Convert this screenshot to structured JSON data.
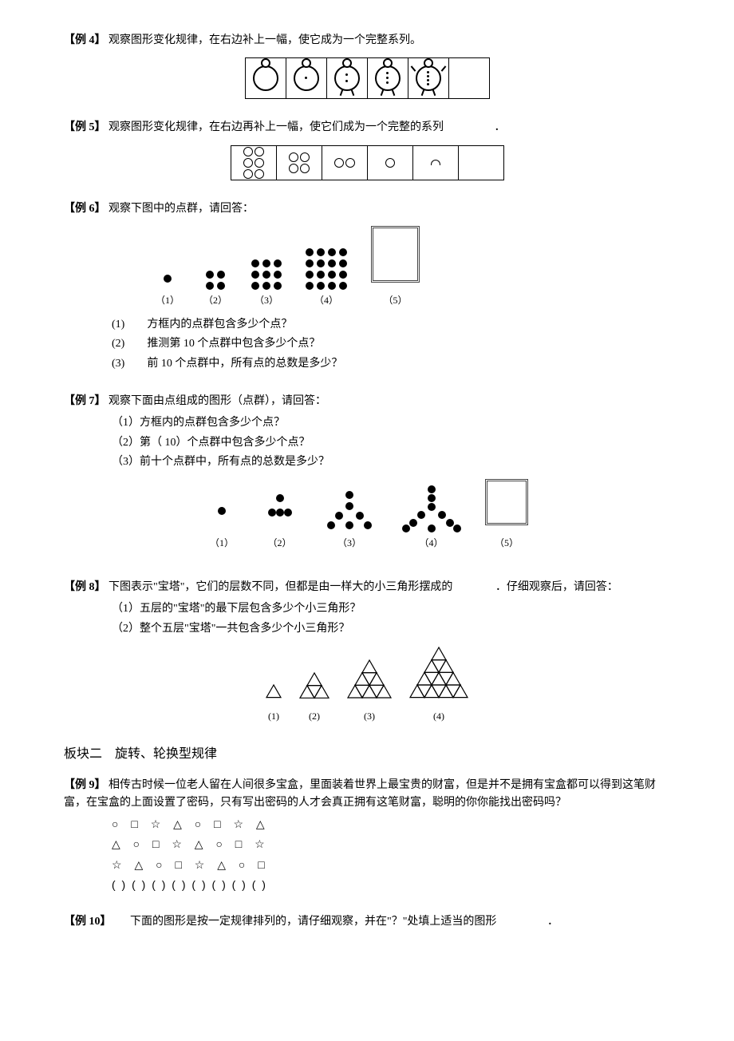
{
  "ex4": {
    "label": "【例 4】",
    "text": "观察图形变化规律，在右边补上一幅，使它成为一个完整系列。",
    "cells": 6
  },
  "ex5": {
    "label": "【例 5】",
    "text": "观察图形变化规律，在右边再补上一幅，使它们成为一个完整的系列",
    "trailing": "．",
    "cells": [
      {
        "type": "circles",
        "count": 6,
        "cols": 2,
        "rows": 3
      },
      {
        "type": "circles",
        "count": 4,
        "cols": 2,
        "rows": 2
      },
      {
        "type": "circles",
        "count": 2,
        "cols": 2,
        "rows": 1
      },
      {
        "type": "circles",
        "count": 1,
        "cols": 1,
        "rows": 1
      },
      {
        "type": "semi"
      },
      {
        "type": "empty"
      }
    ]
  },
  "ex6": {
    "label": "【例 6】",
    "text": "观察下图中的点群，请回答：",
    "groups": [
      {
        "n": 1,
        "label": "（1）"
      },
      {
        "n": 2,
        "label": "（2）"
      },
      {
        "n": 3,
        "label": "（3）"
      },
      {
        "n": 4,
        "label": "（4）"
      },
      {
        "n": 0,
        "label": "（5）",
        "box": true
      }
    ],
    "q1_num": "(1)",
    "q1": "方框内的点群包含多少个点？",
    "q2_num": "(2)",
    "q2": "推测第 10 个点群中包含多少个点？",
    "q3_num": "(3)",
    "q3": "前 10 个点群中，所有点的总数是多少？"
  },
  "ex7": {
    "label": "【例 7】",
    "text": "观察下面由点组成的图形（点群），请回答：",
    "q1": "（1）方框内的点群包含多少个点？",
    "q2": "（2）第（ 10）个点群中包含多少个点？",
    "q3": "（3）前十个点群中，所有点的总数是多少？",
    "labels": [
      "（1）",
      "（2）",
      "（3）",
      "（4）",
      "（5）"
    ]
  },
  "ex8": {
    "label": "【例 8】",
    "text": "下图表示\"宝塔\"，它们的层数不同，但都是由一样大的小三角形摆成的",
    "tail": "．仔细观察后，请回答：",
    "q1": "（1）五层的\"宝塔\"的最下层包含多少个小三角形？",
    "q2": "（2）整个五层\"宝塔\"一共包含多少个小三角形？",
    "labels": [
      "(1)",
      "(2)",
      "(3)",
      "(4)"
    ]
  },
  "section2": {
    "title": "板块二　旋转、轮换型规律"
  },
  "ex9": {
    "label": "【例  9】",
    "text": "相传古时候一位老人留在人间很多宝盒，里面装着世界上最宝贵的财富，但是并不是拥有宝盒都可以得到这笔财富，在宝盒的上面设置了密码，只有写出密码的人才会真正拥有这笔财富，聪明的你你能找出密码吗？",
    "rows": [
      "○ □ ☆ △ ○ □ ☆ △",
      "△ ○ □ ☆ △ ○ □ ☆",
      "☆ △ ○ □ ☆ △ ○ □",
      "(  ) (  ) (  ) (  ) (  ) (  ) (  ) (  )"
    ]
  },
  "ex10": {
    "label": "【例 10】",
    "text": "下面的图形是按一定规律排列的，请仔细观察，并在\"？\"处填上适当的图形",
    "tail": "．"
  }
}
